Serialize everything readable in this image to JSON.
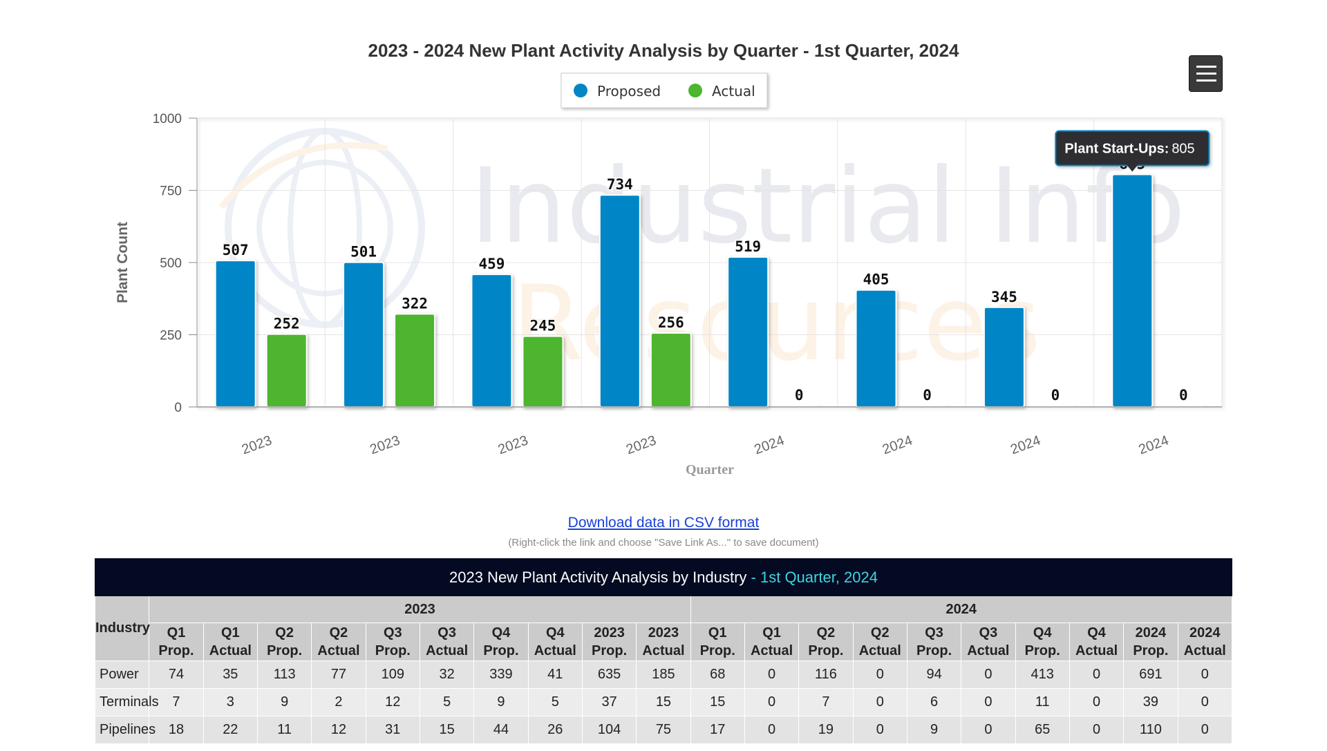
{
  "chart_data": {
    "type": "bar",
    "title": "2023 - 2024 New Plant Activity Analysis by Quarter - 1st Quarter, 2024",
    "xlabel": "Quarter",
    "ylabel": "Plant Count",
    "ylim": [
      0,
      1000
    ],
    "yticks": [
      0,
      250,
      500,
      750,
      1000
    ],
    "categories": [
      "2023",
      "2023",
      "2023",
      "2023",
      "2024",
      "2024",
      "2024",
      "2024"
    ],
    "series": [
      {
        "name": "Proposed",
        "color": "#0386c6",
        "values": [
          507,
          501,
          459,
          734,
          519,
          405,
          345,
          805
        ]
      },
      {
        "name": "Actual",
        "color": "#4db52e",
        "values": [
          252,
          322,
          245,
          256,
          0,
          0,
          0,
          0
        ]
      }
    ],
    "legend_position": "top-center",
    "grid": true,
    "watermark": {
      "line1": "Industrial Info",
      "line2": "Resources"
    },
    "tooltip": {
      "label": "Plant Start-Ups:",
      "value": "805",
      "series_index": 0,
      "category_index": 7
    }
  },
  "menu": {
    "icon": "hamburger-menu-icon"
  },
  "download": {
    "link_text": "Download data in CSV format",
    "note": "(Right-click the link and choose \"Save Link As...\" to save document)"
  },
  "table": {
    "title": "2023 New Plant Activity Analysis by Industry",
    "subtitle": " - 1st Quarter, 2024",
    "industry_header": "Industry",
    "year_groups": [
      "2023",
      "2024"
    ],
    "columns": [
      [
        "Q1",
        "Prop."
      ],
      [
        "Q1",
        "Actual"
      ],
      [
        "Q2",
        "Prop."
      ],
      [
        "Q2",
        "Actual"
      ],
      [
        "Q3",
        "Prop."
      ],
      [
        "Q3",
        "Actual"
      ],
      [
        "Q4",
        "Prop."
      ],
      [
        "Q4",
        "Actual"
      ],
      [
        "2023",
        "Prop."
      ],
      [
        "2023",
        "Actual"
      ],
      [
        "Q1",
        "Prop."
      ],
      [
        "Q1",
        "Actual"
      ],
      [
        "Q2",
        "Prop."
      ],
      [
        "Q2",
        "Actual"
      ],
      [
        "Q3",
        "Prop."
      ],
      [
        "Q3",
        "Actual"
      ],
      [
        "Q4",
        "Prop."
      ],
      [
        "Q4",
        "Actual"
      ],
      [
        "2024",
        "Prop."
      ],
      [
        "2024",
        "Actual"
      ]
    ],
    "rows": [
      {
        "industry": "Power",
        "values": [
          "74",
          "35",
          "113",
          "77",
          "109",
          "32",
          "339",
          "41",
          "635",
          "185",
          "68",
          "0",
          "116",
          "0",
          "94",
          "0",
          "413",
          "0",
          "691",
          "0"
        ]
      },
      {
        "industry": "Terminals",
        "values": [
          "7",
          "3",
          "9",
          "2",
          "12",
          "5",
          "9",
          "5",
          "37",
          "15",
          "15",
          "0",
          "7",
          "0",
          "6",
          "0",
          "11",
          "0",
          "39",
          "0"
        ]
      },
      {
        "industry": "Pipelines",
        "values": [
          "18",
          "22",
          "11",
          "12",
          "31",
          "15",
          "44",
          "26",
          "104",
          "75",
          "17",
          "0",
          "19",
          "0",
          "9",
          "0",
          "65",
          "0",
          "110",
          "0"
        ]
      }
    ]
  }
}
